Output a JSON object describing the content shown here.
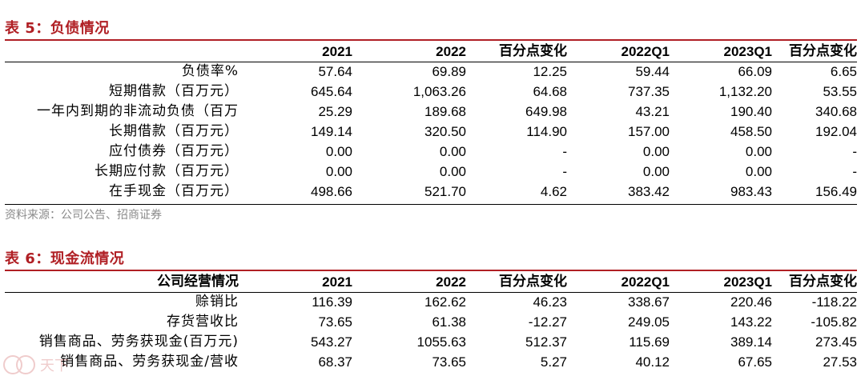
{
  "table5": {
    "caption": "表 5：负债情况",
    "headers": [
      "",
      "2021",
      "2022",
      "百分点变化",
      "2022Q1",
      "2023Q1",
      "百分点变化"
    ],
    "rows": [
      [
        "负债率%",
        "57.64",
        "69.89",
        "12.25",
        "59.44",
        "66.09",
        "6.65"
      ],
      [
        "短期借款（百万元）",
        "645.64",
        "1,063.26",
        "64.68",
        "737.35",
        "1,132.20",
        "53.55"
      ],
      [
        "一年内到期的非流动负债（百万",
        "25.29",
        "189.68",
        "649.98",
        "43.21",
        "190.40",
        "340.68"
      ],
      [
        "长期借款（百万元）",
        "149.14",
        "320.50",
        "114.90",
        "157.00",
        "458.50",
        "192.04"
      ],
      [
        "应付债券（百万元）",
        "0.00",
        "0.00",
        "-",
        "0.00",
        "0.00",
        "-"
      ],
      [
        "长期应付款（百万元）",
        "0.00",
        "0.00",
        "-",
        "0.00",
        "0.00",
        "-"
      ],
      [
        "在手现金（百万元）",
        "498.66",
        "521.70",
        "4.62",
        "383.42",
        "983.43",
        "156.49"
      ]
    ],
    "source": "资料来源：公司公告、招商证券"
  },
  "table6": {
    "caption": "表 6：现金流情况",
    "headers": [
      "公司经营情况",
      "2021",
      "2022",
      "百分点变化",
      "2022Q1",
      "2023Q1",
      "百分点变化"
    ],
    "rows": [
      [
        "赊销比",
        "116.39",
        "162.62",
        "46.23",
        "338.67",
        "220.46",
        "-118.22"
      ],
      [
        "存货营收比",
        "73.65",
        "61.38",
        "-12.27",
        "249.05",
        "143.22",
        "-105.82"
      ],
      [
        "销售商品、劳务获现金(百万元)",
        "543.27",
        "1055.63",
        "512.37",
        "115.69",
        "389.14",
        "273.45"
      ],
      [
        "销售商品、劳务获现金/营收",
        "68.37",
        "73.65",
        "5.27",
        "40.12",
        "67.65",
        "27.53"
      ]
    ]
  },
  "watermark": {
    "text": "天下"
  }
}
